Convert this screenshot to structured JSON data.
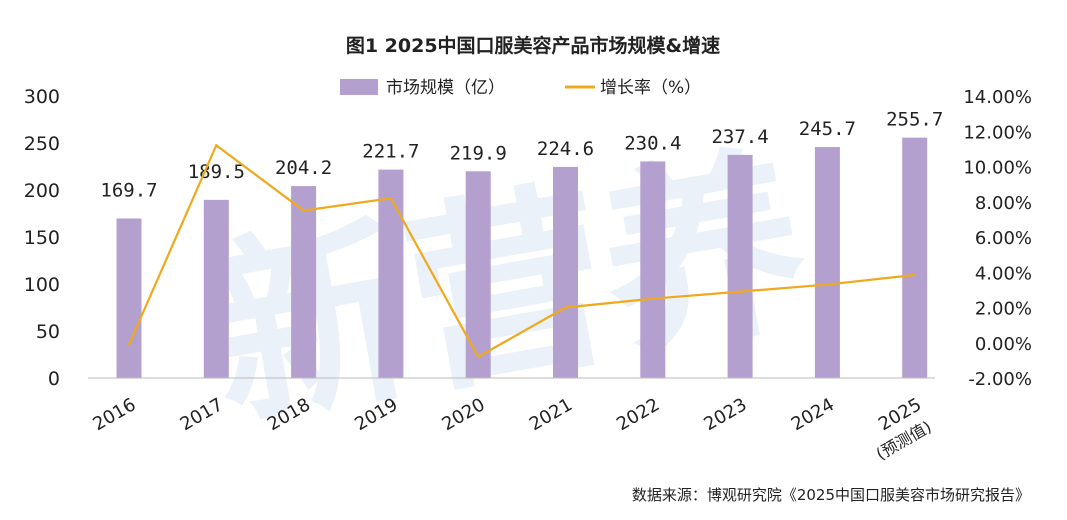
{
  "chart_data": {
    "type": "bar+line",
    "title": "图1 2025中国口服美容产品市场规模&增速",
    "categories": [
      "2016",
      "2017",
      "2018",
      "2019",
      "2020",
      "2021",
      "2022",
      "2023",
      "2024",
      "2025"
    ],
    "category_sublabels": {
      "2025": "(预测值)"
    },
    "series": [
      {
        "name": "市场规模（亿）",
        "type": "bar",
        "axis": "left",
        "color": "#b4a0cf",
        "values": [
          169.7,
          189.5,
          204.2,
          221.7,
          219.9,
          224.6,
          230.4,
          237.4,
          245.7,
          255.7
        ],
        "data_labels": [
          "169.7",
          "189.5",
          "204.2",
          "221.7",
          "219.9",
          "224.6",
          "230.4",
          "237.4",
          "245.7",
          "255.7"
        ]
      },
      {
        "name": "增长率（%）",
        "type": "line",
        "axis": "right",
        "color": "#f0a81c",
        "values": [
          -0.1,
          11.2,
          7.5,
          8.2,
          -0.8,
          2.0,
          2.5,
          2.9,
          3.3,
          3.85
        ]
      }
    ],
    "left_axis": {
      "min": 0,
      "max": 300,
      "ticks": [
        "0",
        "50",
        "100",
        "150",
        "200",
        "250",
        "300"
      ]
    },
    "right_axis": {
      "min": -2,
      "max": 14,
      "ticks": [
        "-2.00%",
        "0.00%",
        "2.00%",
        "4.00%",
        "6.00%",
        "8.00%",
        "10.00%",
        "12.00%",
        "14.00%"
      ]
    },
    "grid": false,
    "legend": "top-center",
    "source": "数据来源：博观研究院《2025中国口服美容市场研究报告》",
    "watermark": "新营养 New Nutrition Business"
  }
}
